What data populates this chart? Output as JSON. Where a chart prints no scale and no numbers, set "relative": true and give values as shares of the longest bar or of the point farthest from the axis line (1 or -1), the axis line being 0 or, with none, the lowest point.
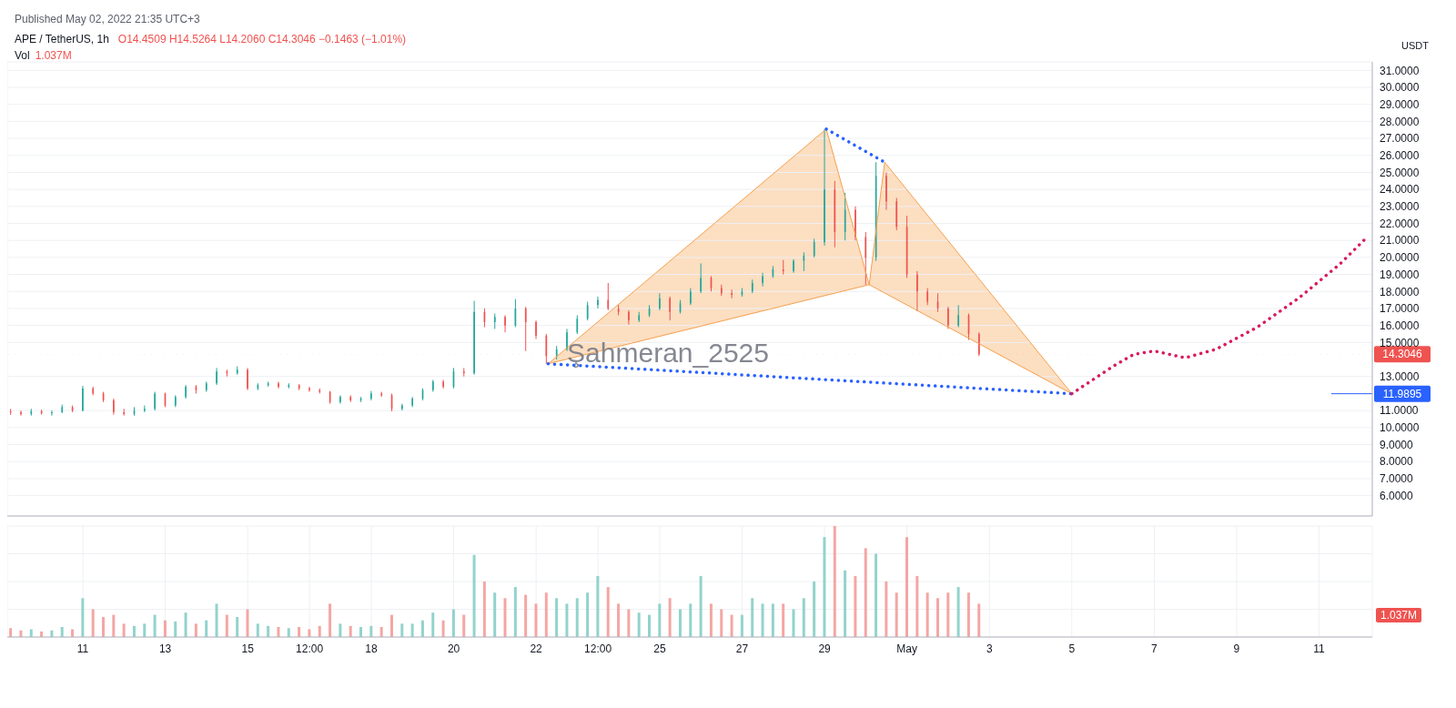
{
  "chart_data": [
    {
      "type": "candlestick",
      "title": "APE / TetherUS, 1h",
      "ylabel": "USDT",
      "annotations": [
        "Published May 02, 2022 21:35 UTC+3",
        "O14.4509 H14.5264 L14.2060 C14.3046 −0.1463 (−1.01%)",
        "Vol",
        "1.037M",
        "Şahmeran_2525"
      ],
      "x": [
        "2022-04-09T06:00",
        "2022-04-09T12:00",
        "2022-04-09T18:00",
        "2022-04-10T00:00",
        "2022-04-10T06:00",
        "2022-04-10T12:00",
        "2022-04-10T18:00",
        "2022-04-11T00:00",
        "2022-04-11T06:00",
        "2022-04-11T12:00",
        "2022-04-11T18:00",
        "2022-04-12T00:00",
        "2022-04-12T06:00",
        "2022-04-12T12:00",
        "2022-04-12T18:00",
        "2022-04-13T00:00",
        "2022-04-13T06:00",
        "2022-04-13T12:00",
        "2022-04-13T18:00",
        "2022-04-14T00:00",
        "2022-04-14T06:00",
        "2022-04-14T12:00",
        "2022-04-14T18:00",
        "2022-04-15T00:00",
        "2022-04-15T06:00",
        "2022-04-15T12:00",
        "2022-04-15T18:00",
        "2022-04-16T00:00",
        "2022-04-16T06:00",
        "2022-04-16T12:00",
        "2022-04-16T18:00",
        "2022-04-17T00:00",
        "2022-04-17T06:00",
        "2022-04-17T12:00",
        "2022-04-17T18:00",
        "2022-04-18T00:00",
        "2022-04-18T06:00",
        "2022-04-18T12:00",
        "2022-04-18T18:00",
        "2022-04-19T00:00",
        "2022-04-19T06:00",
        "2022-04-19T12:00",
        "2022-04-19T18:00",
        "2022-04-20T00:00",
        "2022-04-20T06:00",
        "2022-04-20T12:00",
        "2022-04-20T18:00",
        "2022-04-21T00:00",
        "2022-04-21T06:00",
        "2022-04-21T12:00",
        "2022-04-21T18:00",
        "2022-04-22T00:00",
        "2022-04-22T06:00",
        "2022-04-22T12:00",
        "2022-04-22T18:00",
        "2022-04-23T00:00",
        "2022-04-23T06:00",
        "2022-04-23T12:00",
        "2022-04-23T18:00",
        "2022-04-24T00:00",
        "2022-04-24T06:00",
        "2022-04-24T12:00",
        "2022-04-24T18:00",
        "2022-04-25T00:00",
        "2022-04-25T06:00",
        "2022-04-25T12:00",
        "2022-04-25T18:00",
        "2022-04-26T00:00",
        "2022-04-26T06:00",
        "2022-04-26T12:00",
        "2022-04-26T18:00",
        "2022-04-27T00:00",
        "2022-04-27T06:00",
        "2022-04-27T12:00",
        "2022-04-27T18:00",
        "2022-04-28T00:00",
        "2022-04-28T06:00",
        "2022-04-28T12:00",
        "2022-04-28T18:00",
        "2022-04-29T00:00",
        "2022-04-29T06:00",
        "2022-04-29T12:00",
        "2022-04-29T18:00",
        "2022-04-30T00:00",
        "2022-04-30T06:00",
        "2022-04-30T12:00",
        "2022-04-30T18:00",
        "2022-05-01T00:00",
        "2022-05-01T06:00",
        "2022-05-01T12:00",
        "2022-05-01T18:00",
        "2022-05-02T00:00",
        "2022-05-02T06:00",
        "2022-05-02T12:00",
        "2022-05-02T18:00"
      ],
      "ohlc": [
        [
          10.95,
          11.1,
          10.75,
          10.9
        ],
        [
          10.9,
          11.0,
          10.7,
          10.8
        ],
        [
          10.8,
          11.1,
          10.7,
          10.95
        ],
        [
          10.95,
          11.05,
          10.75,
          10.85
        ],
        [
          10.85,
          11.0,
          10.7,
          10.9
        ],
        [
          10.9,
          11.35,
          10.85,
          11.2
        ],
        [
          11.2,
          11.3,
          10.9,
          11.0
        ],
        [
          11.0,
          12.45,
          10.95,
          12.3
        ],
        [
          12.3,
          12.4,
          11.9,
          12.0
        ],
        [
          12.0,
          12.1,
          11.5,
          11.6
        ],
        [
          11.6,
          11.7,
          10.75,
          10.9
        ],
        [
          10.9,
          11.1,
          10.7,
          10.8
        ],
        [
          10.8,
          11.2,
          10.7,
          11.0
        ],
        [
          11.0,
          11.3,
          10.9,
          11.1
        ],
        [
          11.1,
          12.1,
          11.0,
          12.0
        ],
        [
          12.0,
          12.05,
          11.2,
          11.3
        ],
        [
          11.3,
          11.9,
          11.2,
          11.8
        ],
        [
          11.8,
          12.5,
          11.7,
          12.4
        ],
        [
          12.4,
          12.5,
          12.0,
          12.2
        ],
        [
          12.2,
          12.7,
          12.1,
          12.6
        ],
        [
          12.6,
          13.5,
          12.5,
          13.3
        ],
        [
          13.3,
          13.4,
          13.0,
          13.2
        ],
        [
          13.2,
          13.6,
          13.1,
          13.4
        ],
        [
          13.4,
          13.5,
          12.2,
          12.3
        ],
        [
          12.3,
          12.6,
          12.2,
          12.5
        ],
        [
          12.5,
          12.7,
          12.4,
          12.6
        ],
        [
          12.6,
          12.7,
          12.3,
          12.4
        ],
        [
          12.4,
          12.6,
          12.3,
          12.5
        ],
        [
          12.5,
          12.55,
          12.2,
          12.3
        ],
        [
          12.3,
          12.4,
          12.1,
          12.2
        ],
        [
          12.2,
          12.3,
          12.0,
          12.1
        ],
        [
          12.1,
          12.15,
          11.4,
          11.5
        ],
        [
          11.5,
          11.9,
          11.4,
          11.8
        ],
        [
          11.8,
          11.9,
          11.5,
          11.6
        ],
        [
          11.6,
          11.8,
          11.5,
          11.7
        ],
        [
          11.7,
          12.15,
          11.6,
          12.0
        ],
        [
          12.0,
          12.1,
          11.8,
          11.9
        ],
        [
          11.9,
          12.0,
          10.95,
          11.1
        ],
        [
          11.1,
          11.4,
          11.0,
          11.3
        ],
        [
          11.3,
          11.8,
          11.2,
          11.7
        ],
        [
          11.7,
          12.3,
          11.6,
          12.2
        ],
        [
          12.2,
          12.8,
          12.1,
          12.7
        ],
        [
          12.7,
          12.8,
          12.3,
          12.4
        ],
        [
          12.4,
          13.5,
          12.3,
          13.3
        ],
        [
          13.3,
          13.5,
          13.0,
          13.2
        ],
        [
          13.2,
          17.45,
          13.1,
          16.8
        ],
        [
          16.8,
          17.0,
          15.9,
          16.2
        ],
        [
          16.2,
          16.7,
          15.8,
          16.5
        ],
        [
          16.5,
          16.6,
          15.6,
          16.0
        ],
        [
          16.0,
          17.55,
          15.9,
          17.0
        ],
        [
          17.0,
          17.1,
          14.5,
          16.2
        ],
        [
          16.2,
          16.3,
          15.2,
          15.4
        ],
        [
          15.4,
          15.5,
          13.75,
          14.2
        ],
        [
          14.2,
          14.8,
          14.0,
          14.6
        ],
        [
          14.6,
          15.8,
          14.5,
          15.6
        ],
        [
          15.6,
          16.6,
          15.5,
          16.4
        ],
        [
          16.4,
          17.4,
          16.3,
          17.2
        ],
        [
          17.2,
          17.7,
          17.0,
          17.5
        ],
        [
          17.5,
          18.5,
          16.9,
          17.0
        ],
        [
          17.0,
          17.2,
          16.6,
          16.8
        ],
        [
          16.8,
          16.9,
          16.05,
          16.3
        ],
        [
          16.3,
          16.8,
          16.2,
          16.6
        ],
        [
          16.6,
          17.2,
          16.5,
          17.0
        ],
        [
          17.0,
          17.9,
          16.9,
          17.6
        ],
        [
          17.6,
          17.7,
          16.3,
          16.8
        ],
        [
          16.8,
          17.5,
          16.7,
          17.3
        ],
        [
          17.3,
          18.2,
          17.2,
          18.0
        ],
        [
          18.0,
          19.65,
          17.9,
          18.8
        ],
        [
          18.8,
          18.9,
          18.0,
          18.2
        ],
        [
          18.2,
          18.4,
          17.75,
          17.9
        ],
        [
          17.9,
          18.1,
          17.6,
          17.8
        ],
        [
          17.8,
          18.2,
          17.7,
          18.0
        ],
        [
          18.0,
          18.7,
          17.9,
          18.5
        ],
        [
          18.5,
          19.1,
          18.3,
          18.9
        ],
        [
          18.9,
          19.5,
          18.8,
          19.3
        ],
        [
          19.3,
          19.85,
          19.0,
          19.2
        ],
        [
          19.2,
          19.9,
          19.1,
          19.8
        ],
        [
          19.8,
          20.3,
          19.2,
          20.1
        ],
        [
          20.1,
          21.1,
          20.0,
          20.9
        ],
        [
          20.9,
          27.55,
          20.7,
          24.0
        ],
        [
          24.0,
          24.5,
          20.6,
          21.5
        ],
        [
          21.5,
          23.8,
          21.0,
          22.8
        ],
        [
          22.8,
          23.0,
          21.0,
          21.2
        ],
        [
          21.2,
          21.5,
          18.4,
          20.0
        ],
        [
          20.0,
          25.6,
          19.8,
          24.8
        ],
        [
          24.8,
          25.0,
          22.8,
          23.3
        ],
        [
          23.3,
          23.5,
          21.6,
          21.8
        ],
        [
          21.8,
          22.45,
          18.8,
          19.0
        ],
        [
          19.0,
          19.2,
          16.85,
          18.0
        ],
        [
          18.0,
          18.2,
          17.2,
          17.4
        ],
        [
          17.4,
          17.9,
          16.8,
          17.0
        ],
        [
          17.0,
          17.1,
          15.8,
          16.0
        ],
        [
          16.0,
          17.2,
          15.9,
          16.6
        ],
        [
          16.6,
          16.7,
          15.15,
          15.5
        ],
        [
          15.5,
          15.6,
          14.206,
          14.3046
        ]
      ],
      "series": [
        {
          "type": "area",
          "color": "#f5a04e",
          "line_style": "solid",
          "x": [
            "2022-04-22T07:00",
            "2022-04-29T01:00",
            "2022-04-30T02:00",
            "2022-04-22T07:00"
          ],
          "values": [
            13.75,
            27.55,
            18.4,
            13.75
          ]
        },
        {
          "type": "area",
          "color": "#f5a04e",
          "line_style": "solid",
          "x": [
            "2022-04-30T02:00",
            "2022-04-30T11:00",
            "2022-05-05T00:00",
            "2022-04-30T02:00"
          ],
          "values": [
            18.4,
            25.6,
            11.9895,
            18.4
          ]
        },
        {
          "type": "line",
          "color": "#2962ff",
          "line_style": "dotted",
          "x": [
            "2022-04-22T07:00",
            "2022-05-05T00:00"
          ],
          "values": [
            13.75,
            11.9895
          ]
        },
        {
          "type": "line",
          "color": "#2962ff",
          "line_style": "dotted",
          "x": [
            "2022-04-29T01:00",
            "2022-04-30T11:00"
          ],
          "values": [
            27.55,
            25.6
          ]
        },
        {
          "type": "line",
          "color": "#d81b60",
          "line_style": "dotted",
          "x": [
            "2022-05-05T00:00",
            "2022-05-06T00:00",
            "2022-05-06T12:00",
            "2022-05-07T00:00",
            "2022-05-07T18:00",
            "2022-05-08T12:00",
            "2022-05-09T12:00",
            "2022-05-10T12:00",
            "2022-05-11T12:00",
            "2022-05-12T03:00"
          ],
          "values": [
            11.9895,
            13.6,
            14.3,
            14.5,
            14.1,
            14.6,
            15.9,
            17.6,
            19.6,
            21.1
          ]
        }
      ],
      "ref_lines": [
        {
          "axis": "y",
          "value": 14.3046,
          "label": "14.3046",
          "color": "#ef5350",
          "line_style": "dotted"
        },
        {
          "axis": "y",
          "value": 11.9895,
          "label": "11.9895",
          "color": "#2962ff",
          "line_style": "solid"
        }
      ],
      "xlim": [
        "2022-04-09T04:00",
        "2022-05-12T07:00"
      ],
      "ylim": [
        4.8,
        31.5
      ],
      "yticks": [
        {
          "value": 6,
          "label": "6.0000"
        },
        {
          "value": 7,
          "label": "7.0000"
        },
        {
          "value": 8,
          "label": "8.0000"
        },
        {
          "value": 9,
          "label": "9.0000"
        },
        {
          "value": 10,
          "label": "10.0000"
        },
        {
          "value": 11,
          "label": "11.0000"
        },
        {
          "value": 13,
          "label": "13.0000"
        },
        {
          "value": 15,
          "label": "15.0000"
        },
        {
          "value": 16,
          "label": "16.0000"
        },
        {
          "value": 17,
          "label": "17.0000"
        },
        {
          "value": 18,
          "label": "18.0000"
        },
        {
          "value": 19,
          "label": "19.0000"
        },
        {
          "value": 20,
          "label": "20.0000"
        },
        {
          "value": 21,
          "label": "21.0000"
        },
        {
          "value": 22,
          "label": "22.0000"
        },
        {
          "value": 23,
          "label": "23.0000"
        },
        {
          "value": 24,
          "label": "24.0000"
        },
        {
          "value": 25,
          "label": "25.0000"
        },
        {
          "value": 26,
          "label": "26.0000"
        },
        {
          "value": 27,
          "label": "27.0000"
        },
        {
          "value": 28,
          "label": "28.0000"
        },
        {
          "value": 29,
          "label": "29.0000"
        },
        {
          "value": 30,
          "label": "30.0000"
        },
        {
          "value": 31,
          "label": "31.0000"
        }
      ],
      "grid": true,
      "tick_labels": "y"
    },
    {
      "type": "bar",
      "relative": true,
      "x": [
        "2022-04-09T06:00",
        "2022-04-09T12:00",
        "2022-04-09T18:00",
        "2022-04-10T00:00",
        "2022-04-10T06:00",
        "2022-04-10T12:00",
        "2022-04-10T18:00",
        "2022-04-11T00:00",
        "2022-04-11T06:00",
        "2022-04-11T12:00",
        "2022-04-11T18:00",
        "2022-04-12T00:00",
        "2022-04-12T06:00",
        "2022-04-12T12:00",
        "2022-04-12T18:00",
        "2022-04-13T00:00",
        "2022-04-13T06:00",
        "2022-04-13T12:00",
        "2022-04-13T18:00",
        "2022-04-14T00:00",
        "2022-04-14T06:00",
        "2022-04-14T12:00",
        "2022-04-14T18:00",
        "2022-04-15T00:00",
        "2022-04-15T06:00",
        "2022-04-15T12:00",
        "2022-04-15T18:00",
        "2022-04-16T00:00",
        "2022-04-16T06:00",
        "2022-04-16T12:00",
        "2022-04-16T18:00",
        "2022-04-17T00:00",
        "2022-04-17T06:00",
        "2022-04-17T12:00",
        "2022-04-17T18:00",
        "2022-04-18T00:00",
        "2022-04-18T06:00",
        "2022-04-18T12:00",
        "2022-04-18T18:00",
        "2022-04-19T00:00",
        "2022-04-19T06:00",
        "2022-04-19T12:00",
        "2022-04-19T18:00",
        "2022-04-20T00:00",
        "2022-04-20T06:00",
        "2022-04-20T12:00",
        "2022-04-20T18:00",
        "2022-04-21T00:00",
        "2022-04-21T06:00",
        "2022-04-21T12:00",
        "2022-04-21T18:00",
        "2022-04-22T00:00",
        "2022-04-22T06:00",
        "2022-04-22T12:00",
        "2022-04-22T18:00",
        "2022-04-23T00:00",
        "2022-04-23T06:00",
        "2022-04-23T12:00",
        "2022-04-23T18:00",
        "2022-04-24T00:00",
        "2022-04-24T06:00",
        "2022-04-24T12:00",
        "2022-04-24T18:00",
        "2022-04-25T00:00",
        "2022-04-25T06:00",
        "2022-04-25T12:00",
        "2022-04-25T18:00",
        "2022-04-26T00:00",
        "2022-04-26T06:00",
        "2022-04-26T12:00",
        "2022-04-26T18:00",
        "2022-04-27T00:00",
        "2022-04-27T06:00",
        "2022-04-27T12:00",
        "2022-04-27T18:00",
        "2022-04-28T00:00",
        "2022-04-28T06:00",
        "2022-04-28T12:00",
        "2022-04-28T18:00",
        "2022-04-29T00:00",
        "2022-04-29T06:00",
        "2022-04-29T12:00",
        "2022-04-29T18:00",
        "2022-04-30T00:00",
        "2022-04-30T06:00",
        "2022-04-30T12:00",
        "2022-04-30T18:00",
        "2022-05-01T00:00",
        "2022-05-01T06:00",
        "2022-05-01T12:00",
        "2022-05-01T18:00",
        "2022-05-02T00:00",
        "2022-05-02T06:00",
        "2022-05-02T12:00",
        "2022-05-02T18:00"
      ],
      "values": [
        0.08,
        0.06,
        0.07,
        0.05,
        0.06,
        0.09,
        0.07,
        0.35,
        0.25,
        0.18,
        0.2,
        0.12,
        0.1,
        0.12,
        0.2,
        0.15,
        0.14,
        0.22,
        0.12,
        0.15,
        0.3,
        0.2,
        0.18,
        0.25,
        0.12,
        0.1,
        0.09,
        0.08,
        0.09,
        0.07,
        0.1,
        0.3,
        0.12,
        0.1,
        0.09,
        0.1,
        0.09,
        0.2,
        0.12,
        0.12,
        0.15,
        0.22,
        0.15,
        0.25,
        0.2,
        0.74,
        0.5,
        0.4,
        0.35,
        0.45,
        0.38,
        0.3,
        0.4,
        0.35,
        0.3,
        0.35,
        0.4,
        0.55,
        0.45,
        0.3,
        0.25,
        0.22,
        0.2,
        0.3,
        0.35,
        0.25,
        0.3,
        0.55,
        0.3,
        0.25,
        0.2,
        0.2,
        0.35,
        0.3,
        0.3,
        0.3,
        0.25,
        0.35,
        0.5,
        0.9,
        1.0,
        0.6,
        0.55,
        0.8,
        0.75,
        0.5,
        0.4,
        0.9,
        0.55,
        0.4,
        0.35,
        0.4,
        0.45,
        0.4,
        0.3
      ],
      "colors": [
        "#f4a6a4",
        "#f4a6a4",
        "#92d3cc",
        "#f4a6a4",
        "#92d3cc",
        "#92d3cc",
        "#f4a6a4",
        "#92d3cc",
        "#f4a6a4",
        "#f4a6a4",
        "#f4a6a4",
        "#f4a6a4",
        "#92d3cc",
        "#92d3cc",
        "#92d3cc",
        "#f4a6a4",
        "#92d3cc",
        "#92d3cc",
        "#f4a6a4",
        "#92d3cc",
        "#92d3cc",
        "#f4a6a4",
        "#92d3cc",
        "#f4a6a4",
        "#92d3cc",
        "#92d3cc",
        "#f4a6a4",
        "#92d3cc",
        "#f4a6a4",
        "#f4a6a4",
        "#f4a6a4",
        "#f4a6a4",
        "#92d3cc",
        "#f4a6a4",
        "#92d3cc",
        "#92d3cc",
        "#f4a6a4",
        "#f4a6a4",
        "#92d3cc",
        "#92d3cc",
        "#92d3cc",
        "#92d3cc",
        "#f4a6a4",
        "#92d3cc",
        "#f4a6a4",
        "#92d3cc",
        "#f4a6a4",
        "#92d3cc",
        "#f4a6a4",
        "#92d3cc",
        "#f4a6a4",
        "#f4a6a4",
        "#f4a6a4",
        "#92d3cc",
        "#92d3cc",
        "#92d3cc",
        "#92d3cc",
        "#92d3cc",
        "#f4a6a4",
        "#f4a6a4",
        "#f4a6a4",
        "#92d3cc",
        "#92d3cc",
        "#92d3cc",
        "#f4a6a4",
        "#92d3cc",
        "#92d3cc",
        "#92d3cc",
        "#f4a6a4",
        "#f4a6a4",
        "#f4a6a4",
        "#92d3cc",
        "#92d3cc",
        "#92d3cc",
        "#92d3cc",
        "#f4a6a4",
        "#92d3cc",
        "#92d3cc",
        "#92d3cc",
        "#92d3cc",
        "#f4a6a4",
        "#92d3cc",
        "#f4a6a4",
        "#f4a6a4",
        "#92d3cc",
        "#f4a6a4",
        "#f4a6a4",
        "#f4a6a4",
        "#f4a6a4",
        "#f4a6a4",
        "#f4a6a4",
        "#f4a6a4",
        "#92d3cc",
        "#f4a6a4",
        "#f4a6a4"
      ],
      "annotations": [
        "1.037M"
      ],
      "xlim": [
        "2022-04-09T04:00",
        "2022-05-12T07:00"
      ],
      "xticks": [
        {
          "value": "2022-04-11",
          "label": "11"
        },
        {
          "value": "2022-04-13",
          "label": "13"
        },
        {
          "value": "2022-04-15",
          "label": "15"
        },
        {
          "value": "2022-04-16T12:00",
          "label": "12:00"
        },
        {
          "value": "2022-04-18",
          "label": "18"
        },
        {
          "value": "2022-04-20",
          "label": "20"
        },
        {
          "value": "2022-04-22",
          "label": "22"
        },
        {
          "value": "2022-04-23T12:00",
          "label": "12:00"
        },
        {
          "value": "2022-04-25",
          "label": "25"
        },
        {
          "value": "2022-04-27",
          "label": "27"
        },
        {
          "value": "2022-04-29",
          "label": "29"
        },
        {
          "value": "2022-05-01",
          "label": "May"
        },
        {
          "value": "2022-05-03",
          "label": "3"
        },
        {
          "value": "2022-05-05",
          "label": "5"
        },
        {
          "value": "2022-05-07",
          "label": "7"
        },
        {
          "value": "2022-05-09",
          "label": "9"
        },
        {
          "value": "2022-05-11",
          "label": "11"
        }
      ],
      "grid": true,
      "tick_labels": "x"
    }
  ]
}
